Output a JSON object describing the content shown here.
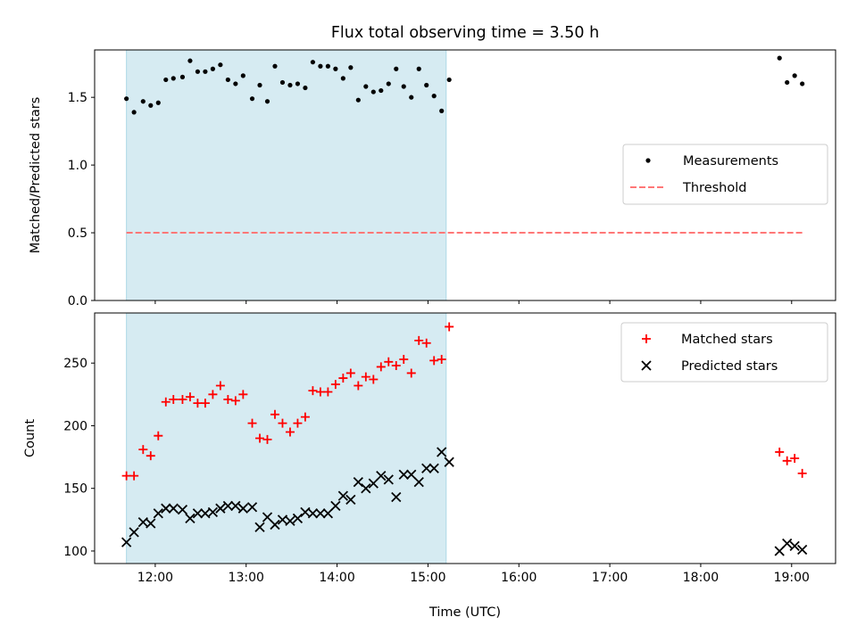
{
  "figure": {
    "title": "Flux total observing time = 3.50 h",
    "xlabel": "Time (UTC)",
    "x_ticks": [
      "12:00",
      "13:00",
      "14:00",
      "15:00",
      "16:00",
      "17:00",
      "18:00",
      "19:00"
    ],
    "shaded_region": {
      "start": "11:41",
      "end": "15:12",
      "color": "#add8e6"
    }
  },
  "chart_data": [
    {
      "type": "scatter",
      "ylabel": "Matched/Predicted stars",
      "ylim": [
        0,
        1.85
      ],
      "y_ticks": [
        "0.0",
        "0.5",
        "1.0",
        "1.5"
      ],
      "legend_position": "center-right",
      "series": [
        {
          "name": "Measurements",
          "color": "#000000",
          "marker": "dot",
          "x": [
            "11:41",
            "11:46",
            "11:52",
            "11:57",
            "12:02",
            "12:07",
            "12:12",
            "12:18",
            "12:23",
            "12:28",
            "12:33",
            "12:38",
            "12:43",
            "12:48",
            "12:53",
            "12:58",
            "13:04",
            "13:09",
            "13:14",
            "13:19",
            "13:24",
            "13:29",
            "13:34",
            "13:39",
            "13:44",
            "13:49",
            "13:54",
            "13:59",
            "14:04",
            "14:09",
            "14:14",
            "14:19",
            "14:24",
            "14:29",
            "14:34",
            "14:39",
            "14:44",
            "14:49",
            "14:54",
            "14:59",
            "15:04",
            "15:09",
            "15:14",
            "18:52",
            "18:57",
            "19:02",
            "19:07"
          ],
          "y": [
            1.49,
            1.39,
            1.47,
            1.44,
            1.46,
            1.63,
            1.64,
            1.65,
            1.77,
            1.69,
            1.69,
            1.71,
            1.74,
            1.63,
            1.6,
            1.66,
            1.49,
            1.59,
            1.47,
            1.73,
            1.61,
            1.59,
            1.6,
            1.57,
            1.76,
            1.73,
            1.73,
            1.71,
            1.64,
            1.72,
            1.48,
            1.58,
            1.54,
            1.55,
            1.6,
            1.71,
            1.58,
            1.5,
            1.71,
            1.59,
            1.51,
            1.4,
            1.63,
            1.79,
            1.61,
            1.66,
            1.6
          ]
        },
        {
          "name": "Threshold",
          "color": "#ff7777",
          "style": "dashed",
          "x": [
            "11:41",
            "19:07"
          ],
          "y": [
            0.5,
            0.5
          ]
        }
      ]
    },
    {
      "type": "scatter",
      "ylabel": "Count",
      "ylim": [
        90,
        290
      ],
      "y_ticks": [
        "100",
        "150",
        "200",
        "250"
      ],
      "legend_position": "top-right",
      "series": [
        {
          "name": "Matched stars",
          "color": "#ff0000",
          "marker": "plus",
          "x": [
            "11:41",
            "11:46",
            "11:52",
            "11:57",
            "12:02",
            "12:07",
            "12:12",
            "12:18",
            "12:23",
            "12:28",
            "12:33",
            "12:38",
            "12:43",
            "12:48",
            "12:53",
            "12:58",
            "13:04",
            "13:09",
            "13:14",
            "13:19",
            "13:24",
            "13:29",
            "13:34",
            "13:39",
            "13:44",
            "13:49",
            "13:54",
            "13:59",
            "14:04",
            "14:09",
            "14:14",
            "14:19",
            "14:24",
            "14:29",
            "14:34",
            "14:39",
            "14:44",
            "14:49",
            "14:54",
            "14:59",
            "15:04",
            "15:09",
            "15:14",
            "18:52",
            "18:57",
            "19:02",
            "19:07"
          ],
          "y": [
            160,
            160,
            181,
            176,
            192,
            219,
            221,
            221,
            223,
            218,
            218,
            225,
            232,
            221,
            220,
            225,
            202,
            190,
            189,
            209,
            202,
            195,
            202,
            207,
            228,
            227,
            227,
            233,
            238,
            242,
            232,
            239,
            237,
            247,
            251,
            248,
            253,
            242,
            268,
            266,
            252,
            253,
            279,
            179,
            172,
            174,
            162
          ]
        },
        {
          "name": "Predicted stars",
          "color": "#000000",
          "marker": "x",
          "x": [
            "11:41",
            "11:46",
            "11:52",
            "11:57",
            "12:02",
            "12:07",
            "12:12",
            "12:18",
            "12:23",
            "12:28",
            "12:33",
            "12:38",
            "12:43",
            "12:48",
            "12:53",
            "12:58",
            "13:04",
            "13:09",
            "13:14",
            "13:19",
            "13:24",
            "13:29",
            "13:34",
            "13:39",
            "13:44",
            "13:49",
            "13:54",
            "13:59",
            "14:04",
            "14:09",
            "14:14",
            "14:19",
            "14:24",
            "14:29",
            "14:34",
            "14:39",
            "14:44",
            "14:49",
            "14:54",
            "14:59",
            "15:04",
            "15:09",
            "15:14",
            "18:52",
            "18:57",
            "19:02",
            "19:07"
          ],
          "y": [
            107,
            115,
            123,
            122,
            130,
            134,
            134,
            133,
            126,
            130,
            130,
            131,
            134,
            136,
            136,
            134,
            135,
            119,
            127,
            121,
            125,
            124,
            126,
            131,
            130,
            130,
            130,
            136,
            144,
            141,
            155,
            150,
            154,
            160,
            157,
            143,
            161,
            161,
            155,
            166,
            166,
            179,
            171,
            100,
            106,
            104,
            101
          ]
        }
      ]
    }
  ]
}
